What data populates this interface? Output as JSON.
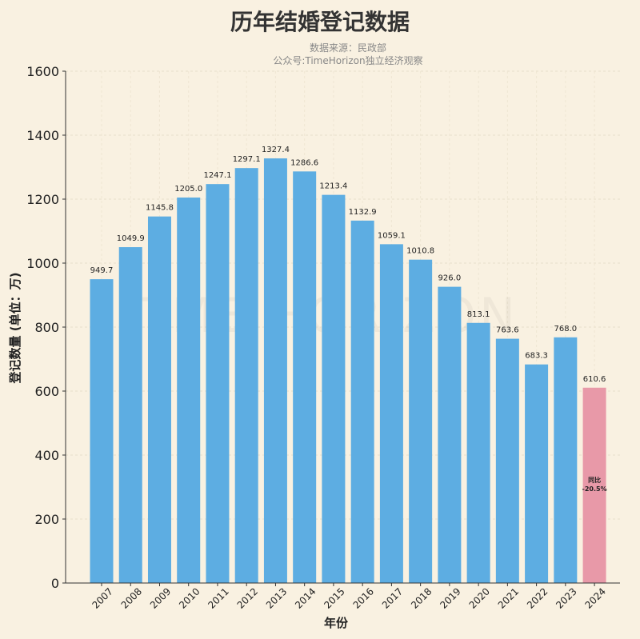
{
  "chart_data": {
    "type": "bar",
    "title": "历年结婚登记数据",
    "subtitle": [
      "数据来源：民政部",
      "公众号:TimeHorizon独立经济观察"
    ],
    "watermark": "TIME HORIZON",
    "xlabel": "年份",
    "ylabel": "登记数量 (单位：万)",
    "ylim": [
      0,
      1600
    ],
    "yticks": [
      0,
      200,
      400,
      600,
      800,
      1000,
      1200,
      1400,
      1600
    ],
    "grid": true,
    "categories": [
      "2007",
      "2008",
      "2009",
      "2010",
      "2011",
      "2012",
      "2013",
      "2014",
      "2015",
      "2016",
      "2017",
      "2018",
      "2019",
      "2020",
      "2021",
      "2022",
      "2023",
      "2024"
    ],
    "values": [
      949.7,
      1049.9,
      1145.8,
      1205.0,
      1247.1,
      1297.1,
      1327.4,
      1286.6,
      1213.4,
      1132.9,
      1059.1,
      1010.8,
      926.0,
      813.1,
      763.6,
      683.3,
      768.0,
      610.6
    ],
    "bar_color": "#5dade2",
    "highlight_color": "#e899a8",
    "highlight_index": 17,
    "annotation": {
      "line1": "同比",
      "line2": "-20.5%"
    }
  }
}
